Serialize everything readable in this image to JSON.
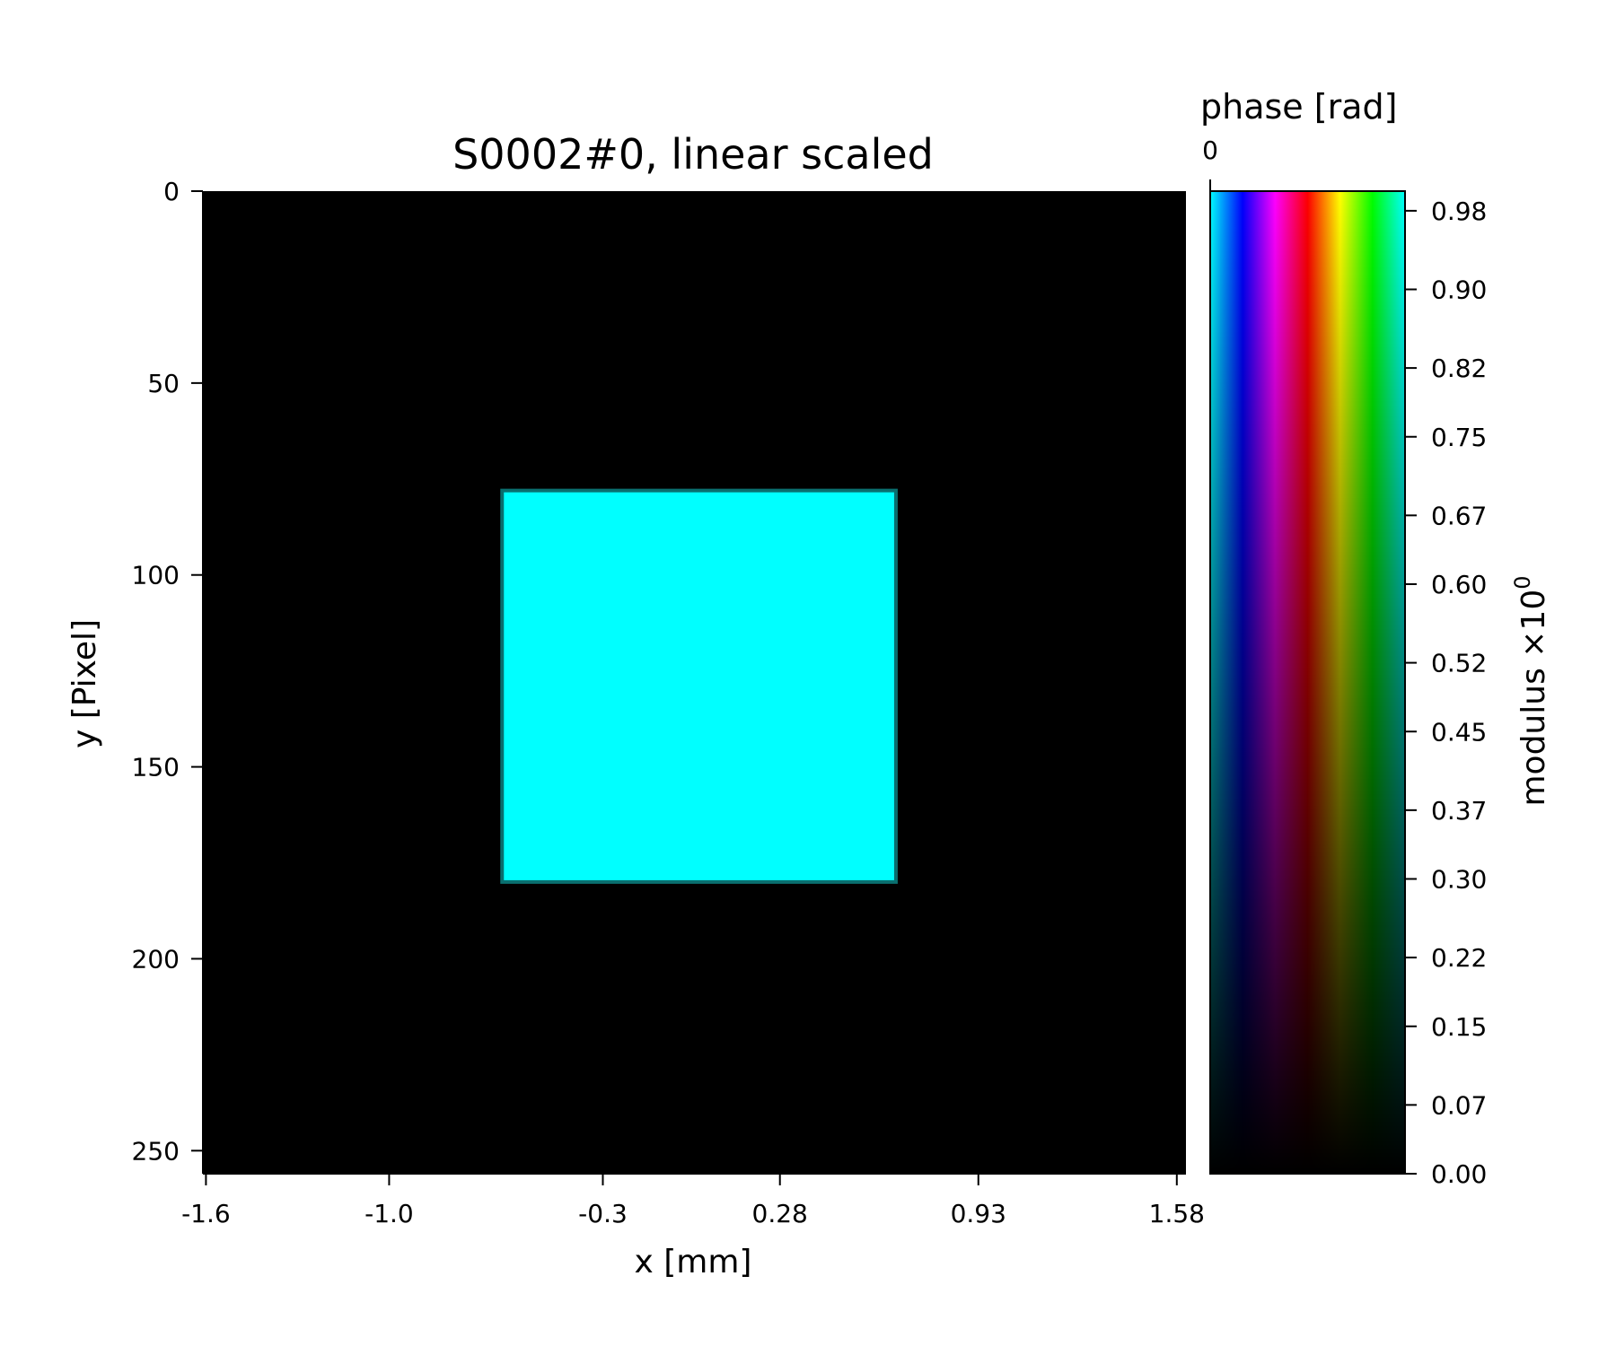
{
  "chart_data": [
    {
      "type": "heatmap",
      "title": "S0002#0, linear scaled",
      "xlabel": "x [mm]",
      "ylabel": "y [Pixel]",
      "x_tick_labels": [
        "-1.6",
        "-1.0",
        "-0.3",
        "0.28",
        "0.93",
        "1.58"
      ],
      "x_ticks": [
        -1.6,
        -1.0,
        -0.3,
        0.28,
        0.93,
        1.58
      ],
      "xlim": [
        -1.61,
        1.61
      ],
      "y_tick_labels": [
        "0",
        "50",
        "100",
        "150",
        "200",
        "250"
      ],
      "y_ticks": [
        0,
        50,
        100,
        150,
        200,
        250
      ],
      "ylim": [
        0,
        256
      ],
      "y_inverted": true,
      "background_value": 0,
      "background_color": "#000000",
      "regions": [
        {
          "shape": "rectangle",
          "x_range": [
            -0.63,
            0.66
          ],
          "y_range": [
            78,
            180
          ],
          "modulus": 1.0,
          "phase": 0,
          "color": "#00ffff"
        }
      ]
    },
    {
      "type": "heatmap",
      "role": "colorbar",
      "title": "phase [rad]",
      "top_tick_label": "0",
      "ylabel": "modulus ×10",
      "ylabel_exponent": "0",
      "tick_labels": [
        "0.98",
        "0.90",
        "0.82",
        "0.75",
        "0.67",
        "0.60",
        "0.52",
        "0.45",
        "0.37",
        "0.30",
        "0.22",
        "0.15",
        "0.07",
        "0.00"
      ],
      "ticks": [
        0.98,
        0.9,
        0.82,
        0.75,
        0.67,
        0.6,
        0.52,
        0.45,
        0.37,
        0.3,
        0.22,
        0.15,
        0.07,
        0.0
      ],
      "ylim": [
        0,
        1.0
      ],
      "phase_colors": [
        "#00ffff",
        "#0080ff",
        "#0000ff",
        "#8000ff",
        "#ff00ff",
        "#ff0080",
        "#ff0000",
        "#ff8000",
        "#ffff00",
        "#80ff00",
        "#00ff00",
        "#00ff80",
        "#00ffff"
      ]
    }
  ]
}
